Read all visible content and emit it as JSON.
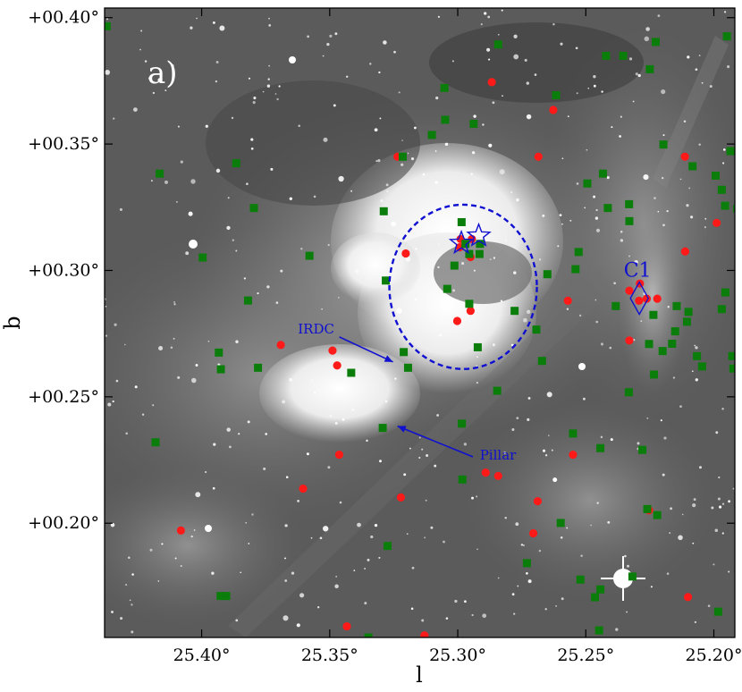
{
  "chart_data": {
    "type": "scatter",
    "title": "",
    "panel_label": "a)",
    "xlabel": "l",
    "ylabel": "b",
    "xlim": [
      25.4379,
      25.1918
    ],
    "ylim": [
      0.1548,
      0.4038
    ],
    "x_reversed": true,
    "grid": false,
    "legend": "none",
    "background": "grayscale infrared image",
    "x_ticks": [
      {
        "value": 25.4,
        "label": "25.40°"
      },
      {
        "value": 25.35,
        "label": "25.35°"
      },
      {
        "value": 25.3,
        "label": "25.30°"
      },
      {
        "value": 25.25,
        "label": "25.25°"
      },
      {
        "value": 25.2,
        "label": "25.20°"
      }
    ],
    "y_ticks": [
      {
        "value": 0.4,
        "label": "+00.40°"
      },
      {
        "value": 0.35,
        "label": "+00.35°"
      },
      {
        "value": 0.3,
        "label": "+00.30°"
      },
      {
        "value": 0.25,
        "label": "+00.25°"
      },
      {
        "value": 0.2,
        "label": "+00.20°"
      }
    ],
    "series": [
      {
        "marker": "circle",
        "color": "#ff1a1a",
        "points": [
          [
            25.2867,
            0.3745
          ],
          [
            25.2627,
            0.3635
          ],
          [
            25.3235,
            0.345
          ],
          [
            25.2685,
            0.345
          ],
          [
            25.2113,
            0.345
          ],
          [
            25.1989,
            0.3188
          ],
          [
            25.2112,
            0.3075
          ],
          [
            25.3203,
            0.3067
          ],
          [
            25.2992,
            0.3092
          ],
          [
            25.295,
            0.3053
          ],
          [
            25.2989,
            0.3124
          ],
          [
            25.2945,
            0.3124
          ],
          [
            25.233,
            0.292
          ],
          [
            25.2292,
            0.288
          ],
          [
            25.2262,
            0.2888
          ],
          [
            25.2289,
            0.2948
          ],
          [
            25.2221,
            0.2888
          ],
          [
            25.257,
            0.288
          ],
          [
            25.295,
            0.284
          ],
          [
            25.3002,
            0.28
          ],
          [
            25.3691,
            0.2705
          ],
          [
            25.3489,
            0.2683
          ],
          [
            25.3471,
            0.2624
          ],
          [
            25.233,
            0.2723
          ],
          [
            25.2253,
            0.2051
          ],
          [
            25.3463,
            0.2271
          ],
          [
            25.3604,
            0.2137
          ],
          [
            25.255,
            0.2271
          ],
          [
            25.2891,
            0.22
          ],
          [
            25.2842,
            0.2187
          ],
          [
            25.2688,
            0.2087
          ],
          [
            25.3222,
            0.2102
          ],
          [
            25.4081,
            0.1971
          ],
          [
            25.2705,
            0.196
          ],
          [
            25.3433,
            0.1592
          ],
          [
            25.313,
            0.1556
          ],
          [
            25.2101,
            0.1708
          ]
        ]
      },
      {
        "marker": "square",
        "color": "#0a7d0a",
        "points": [
          [
            25.4371,
            0.3966
          ],
          [
            25.2842,
            0.3894
          ],
          [
            25.2227,
            0.3904
          ],
          [
            25.1949,
            0.3926
          ],
          [
            25.2421,
            0.3849
          ],
          [
            25.2354,
            0.3849
          ],
          [
            25.225,
            0.3796
          ],
          [
            25.3052,
            0.3722
          ],
          [
            25.2616,
            0.3693
          ],
          [
            25.3049,
            0.3596
          ],
          [
            25.2938,
            0.358
          ],
          [
            25.3101,
            0.3536
          ],
          [
            25.2197,
            0.3498
          ],
          [
            25.3215,
            0.345
          ],
          [
            25.1935,
            0.3472
          ],
          [
            25.2083,
            0.3412
          ],
          [
            25.1993,
            0.3375
          ],
          [
            25.3865,
            0.3424
          ],
          [
            25.4164,
            0.3383
          ],
          [
            25.2433,
            0.3383
          ],
          [
            25.1969,
            0.3319
          ],
          [
            25.2494,
            0.3344
          ],
          [
            25.1909,
            0.3244
          ],
          [
            25.2414,
            0.3247
          ],
          [
            25.2331,
            0.3262
          ],
          [
            25.3796,
            0.3247
          ],
          [
            25.3289,
            0.3234
          ],
          [
            25.1956,
            0.3256
          ],
          [
            25.233,
            0.3195
          ],
          [
            25.2985,
            0.3191
          ],
          [
            25.297,
            0.3105
          ],
          [
            25.2913,
            0.3105
          ],
          [
            25.2955,
            0.3065
          ],
          [
            25.2915,
            0.3065
          ],
          [
            25.2528,
            0.3073
          ],
          [
            25.3579,
            0.3058
          ],
          [
            25.3013,
            0.3019
          ],
          [
            25.3996,
            0.3051
          ],
          [
            25.254,
            0.3005
          ],
          [
            25.265,
            0.2985
          ],
          [
            25.3281,
            0.296
          ],
          [
            25.3041,
            0.2927
          ],
          [
            25.1955,
            0.2913
          ],
          [
            25.3819,
            0.2881
          ],
          [
            25.2955,
            0.2868
          ],
          [
            25.2383,
            0.2859
          ],
          [
            25.2145,
            0.2859
          ],
          [
            25.2099,
            0.2836
          ],
          [
            25.2236,
            0.2824
          ],
          [
            25.2105,
            0.2797
          ],
          [
            25.1969,
            0.2847
          ],
          [
            25.2778,
            0.284
          ],
          [
            25.2151,
            0.2759
          ],
          [
            25.2693,
            0.2766
          ],
          [
            25.1928,
            0.2661
          ],
          [
            25.2066,
            0.2661
          ],
          [
            25.2163,
            0.271
          ],
          [
            25.3933,
            0.2675
          ],
          [
            25.3211,
            0.2677
          ],
          [
            25.2922,
            0.2696
          ],
          [
            25.2253,
            0.2709
          ],
          [
            25.22,
            0.2681
          ],
          [
            25.3925,
            0.2609
          ],
          [
            25.3194,
            0.2615
          ],
          [
            25.3416,
            0.2595
          ],
          [
            25.378,
            0.2615
          ],
          [
            25.1924,
            0.2612
          ],
          [
            25.2046,
            0.262
          ],
          [
            25.2671,
            0.2642
          ],
          [
            25.2234,
            0.2588
          ],
          [
            25.2332,
            0.2518
          ],
          [
            25.2846,
            0.2524
          ],
          [
            25.2984,
            0.2394
          ],
          [
            25.3293,
            0.2377
          ],
          [
            25.255,
            0.2355
          ],
          [
            25.418,
            0.232
          ],
          [
            25.2279,
            0.229
          ],
          [
            25.2443,
            0.2297
          ],
          [
            25.2982,
            0.2173
          ],
          [
            25.226,
            0.2056
          ],
          [
            25.2221,
            0.2032
          ],
          [
            25.2598,
            0.2001
          ],
          [
            25.3274,
            0.191
          ],
          [
            25.273,
            0.1842
          ],
          [
            25.2521,
            0.1777
          ],
          [
            25.2318,
            0.1789
          ],
          [
            25.3904,
            0.1712
          ],
          [
            25.3926,
            0.1712
          ],
          [
            25.2443,
            0.1738
          ],
          [
            25.2464,
            0.1707
          ],
          [
            25.1983,
            0.165
          ],
          [
            25.2448,
            0.1576
          ],
          [
            25.3349,
            0.1548
          ]
        ]
      }
    ],
    "stars": [
      [
        25.2986,
        0.3108
      ],
      [
        25.2918,
        0.3137
      ]
    ],
    "diamond_label": "C1",
    "diamond": [
      25.2291,
      0.289
    ],
    "ellipse": {
      "cx": 25.2979,
      "cy": 0.2935,
      "rx": 0.0288,
      "ry": 0.0325
    },
    "annotations": [
      {
        "text": "IRDC",
        "x": 25.3553,
        "y": 0.2751,
        "arrow_to": [
          25.3253,
          0.2638
        ]
      },
      {
        "text": "Pillar",
        "x": 25.2843,
        "y": 0.2252,
        "arrow_to": [
          25.3235,
          0.2384
        ]
      }
    ]
  }
}
